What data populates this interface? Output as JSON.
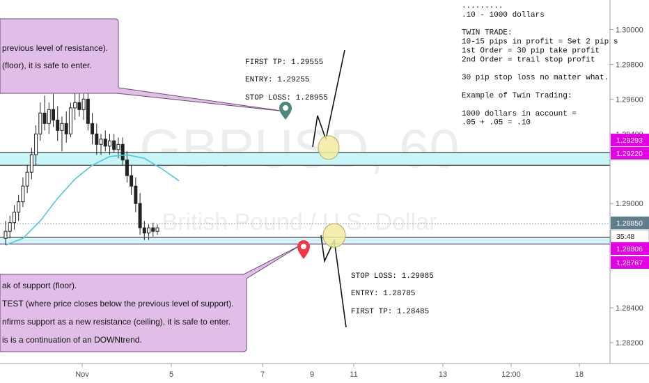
{
  "chart_data": {
    "type": "candlestick",
    "watermark": {
      "symbol": "GBPUSD, 60",
      "description": "British Pound / U.S. Dollar"
    },
    "x_ticks": [
      "Nov",
      "5",
      "7",
      "9",
      "11",
      "13",
      "12:00",
      "18"
    ],
    "y_ticks": [
      "1.30000",
      "1.29800",
      "1.29600",
      "1.29400",
      "1.29000",
      "1.28400",
      "1.28200"
    ],
    "ylim": [
      1.2808,
      1.3017
    ],
    "grid": false,
    "price_tags": [
      {
        "label": "1.29293",
        "value": 1.29293,
        "color": "#e600e6"
      },
      {
        "label": "1.29220",
        "value": 1.2922,
        "color": "#e600e6"
      },
      {
        "label": "1.28850",
        "value": 1.2885,
        "color": "#607d8b"
      },
      {
        "label": "35:48",
        "value": 1.2878,
        "color": "#ffffff"
      },
      {
        "label": "1.28806",
        "value": 1.28806,
        "color": "#e600e6"
      },
      {
        "label": "1.28767",
        "value": 1.28767,
        "color": "#e600e6"
      }
    ],
    "zones": [
      {
        "name": "resistance-zone",
        "from": 1.2922,
        "to": 1.29293,
        "color": "#c8f5f8"
      },
      {
        "name": "support-zone",
        "from": 1.28767,
        "to": 1.28806,
        "color": "#d4f4f8"
      }
    ],
    "moving_average": [
      [
        0,
        1.2876
      ],
      [
        4,
        1.288
      ],
      [
        8,
        1.289
      ],
      [
        12,
        1.2903
      ],
      [
        16,
        1.2914
      ],
      [
        20,
        1.2922
      ],
      [
        24,
        1.2927
      ],
      [
        28,
        1.2928
      ],
      [
        32,
        1.2926
      ],
      [
        36,
        1.292
      ],
      [
        40,
        1.2913
      ]
    ],
    "candles": [
      [
        1.288,
        1.289,
        1.2876,
        1.2884
      ],
      [
        1.2884,
        1.2893,
        1.288,
        1.2889
      ],
      [
        1.2889,
        1.2899,
        1.2885,
        1.2895
      ],
      [
        1.2895,
        1.2905,
        1.289,
        1.2901
      ],
      [
        1.2901,
        1.2915,
        1.2898,
        1.291
      ],
      [
        1.291,
        1.2922,
        1.2906,
        1.2918
      ],
      [
        1.2918,
        1.2932,
        1.2914,
        1.2928
      ],
      [
        1.2928,
        1.2945,
        1.2922,
        1.294
      ],
      [
        1.294,
        1.2958,
        1.2936,
        1.2952
      ],
      [
        1.2952,
        1.2962,
        1.2942,
        1.2946
      ],
      [
        1.2946,
        1.2958,
        1.294,
        1.2954
      ],
      [
        1.2954,
        1.2963,
        1.2944,
        1.2948
      ],
      [
        1.2948,
        1.2956,
        1.2936,
        1.2942
      ],
      [
        1.2942,
        1.295,
        1.293,
        1.2946
      ],
      [
        1.2946,
        1.2953,
        1.2935,
        1.294
      ],
      [
        1.294,
        1.2958,
        1.2938,
        1.2955
      ],
      [
        1.2955,
        1.2965,
        1.2948,
        1.2958
      ],
      [
        1.2958,
        1.2966,
        1.295,
        1.2954
      ],
      [
        1.2954,
        1.2963,
        1.2948,
        1.296
      ],
      [
        1.296,
        1.2965,
        1.2942,
        1.2946
      ],
      [
        1.2946,
        1.2952,
        1.2934,
        1.294
      ],
      [
        1.294,
        1.2946,
        1.2928,
        1.2934
      ],
      [
        1.2934,
        1.294,
        1.2928,
        1.2937
      ],
      [
        1.2937,
        1.2942,
        1.293,
        1.2933
      ],
      [
        1.2933,
        1.294,
        1.2928,
        1.2936
      ],
      [
        1.2936,
        1.294,
        1.2929,
        1.2931
      ],
      [
        1.2931,
        1.2938,
        1.2926,
        1.2934
      ],
      [
        1.2934,
        1.2938,
        1.2922,
        1.2925
      ],
      [
        1.2925,
        1.293,
        1.2912,
        1.2916
      ],
      [
        1.2916,
        1.2922,
        1.2905,
        1.291
      ],
      [
        1.291,
        1.2915,
        1.2895,
        1.29
      ],
      [
        1.29,
        1.2906,
        1.2882,
        1.2886
      ],
      [
        1.2886,
        1.289,
        1.2879,
        1.2883
      ],
      [
        1.2883,
        1.2888,
        1.2879,
        1.2886
      ],
      [
        1.2886,
        1.2889,
        1.2881,
        1.2884
      ],
      [
        1.2884,
        1.2888,
        1.2882,
        1.2886
      ]
    ]
  },
  "annotations": {
    "top_callout": [
      " previous level of resistance).",
      "(floor), it is safe to enter."
    ],
    "bottom_callout": [
      "ak of support (floor).",
      "TEST (where price closes below the previous level of support).",
      "nfirms support as a new resistance (ceiling), it is safe to enter.",
      "is is a continuation of an DOWNtrend."
    ],
    "first_trade": [
      "FIRST TP: 1.29555",
      "ENTRY: 1.29255",
      "STOP LOSS: 1.28955"
    ],
    "second_trade": [
      "STOP LOSS: 1.29085",
      "ENTRY: 1.28785",
      "FIRST TP: 1.28485"
    ],
    "notes": [
      ".........",
      ".10 - 1000 dollars",
      "",
      "TWIN TRADE:",
      "10-15 pips in profit = Set 2 pip s",
      "1st Order = 30 pip take profit",
      "2nd Order = trail stop profit",
      "",
      "30 pip stop loss no matter what.",
      "",
      "Example of Twin Trading:",
      "",
      "1000 dollars in account =",
      ".05 + .05 = .10"
    ]
  },
  "colors": {
    "callout_fill": "#e1bee7",
    "callout_stroke": "#6a4b74",
    "marker_teal": "#4a8a80",
    "marker_red": "#f23645",
    "ellipse": "#f2eca0"
  }
}
